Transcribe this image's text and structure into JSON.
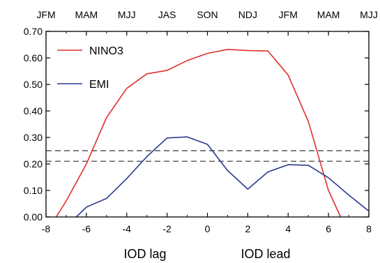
{
  "chart_data": {
    "type": "line",
    "xlim": [
      -8,
      8
    ],
    "ylim": [
      0,
      0.7
    ],
    "x_ticks": [
      -8,
      -6,
      -4,
      -2,
      0,
      2,
      4,
      6,
      8
    ],
    "x_tick_labels": [
      "-8",
      "-6",
      "-4",
      "-2",
      "0",
      "2",
      "4",
      "6",
      "8"
    ],
    "y_ticks": [
      0,
      0.1,
      0.2,
      0.3,
      0.4,
      0.5,
      0.6,
      0.7
    ],
    "y_tick_labels": [
      "0.00",
      "0.10",
      "0.20",
      "0.30",
      "0.40",
      "0.50",
      "0.60",
      "0.70"
    ],
    "top_axis_labels": [
      "JFM",
      "MAM",
      "MJJ",
      "JAS",
      "SON",
      "NDJ",
      "JFM",
      "MAM",
      "MJJ"
    ],
    "xlabel_left": "IOD lag",
    "xlabel_right": "IOD lead",
    "grid": false,
    "legend_position": "top-left",
    "series": [
      {
        "name": "NINO3",
        "color": "#e0302a",
        "x": [
          -7.5,
          -7,
          -6,
          -5,
          -4,
          -3,
          -2,
          -1,
          0,
          1,
          2,
          3,
          4,
          5,
          6,
          6.6
        ],
        "y": [
          0,
          0.06,
          0.2,
          0.375,
          0.485,
          0.54,
          0.553,
          0.59,
          0.617,
          0.632,
          0.628,
          0.626,
          0.535,
          0.36,
          0.1,
          0
        ]
      },
      {
        "name": "EMI",
        "color": "#2b3990",
        "x": [
          -6.5,
          -6,
          -5,
          -4,
          -3,
          -2,
          -1,
          0,
          1,
          2,
          3,
          4,
          5,
          6,
          7,
          8
        ],
        "y": [
          0,
          0.037,
          0.07,
          0.145,
          0.228,
          0.298,
          0.302,
          0.274,
          0.175,
          0.105,
          0.17,
          0.197,
          0.195,
          0.148,
          0.083,
          0.022
        ]
      }
    ],
    "reference_lines": [
      {
        "y": 0.25,
        "style": "dashed",
        "color": "#555555"
      },
      {
        "y": 0.21,
        "style": "dashed",
        "color": "#555555"
      }
    ]
  }
}
